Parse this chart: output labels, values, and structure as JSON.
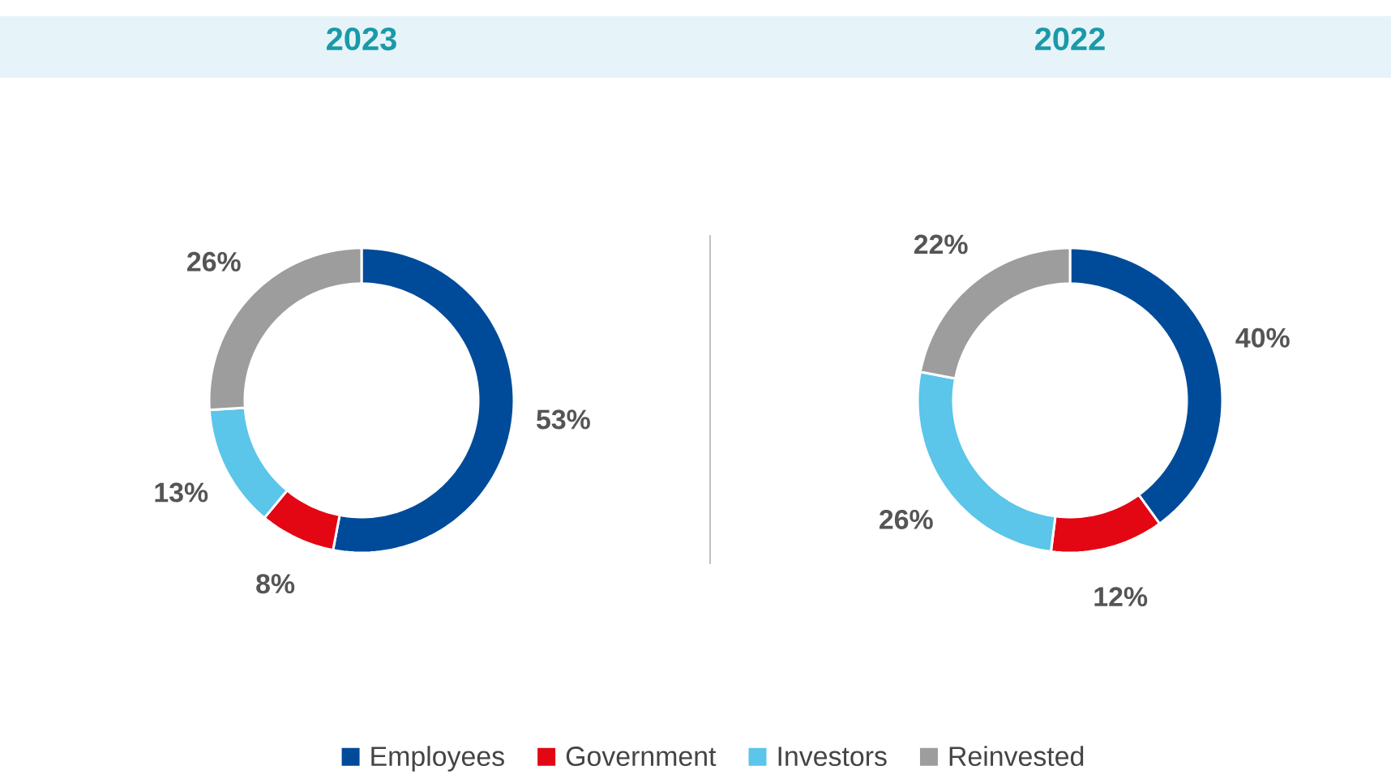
{
  "chart_data": [
    {
      "type": "donut",
      "title": "2023",
      "categories": [
        "Employees",
        "Government",
        "Investors",
        "Reinvested"
      ],
      "values": [
        53,
        8,
        13,
        26
      ],
      "colors": [
        "#004b99",
        "#e30613",
        "#5bc5ea",
        "#9d9d9d"
      ],
      "value_labels": [
        "53%",
        "8%",
        "13%",
        "26%"
      ],
      "legend": "bottom"
    },
    {
      "type": "donut",
      "title": "2022",
      "categories": [
        null,
        null,
        null,
        null
      ],
      "values": [
        40,
        12,
        26,
        22
      ],
      "colors": [
        "#004b99",
        "#e30613",
        "#5bc5ea",
        "#9d9d9d"
      ],
      "value_labels": [
        "40%",
        "12%",
        "26%",
        "22%"
      ]
    }
  ]
}
